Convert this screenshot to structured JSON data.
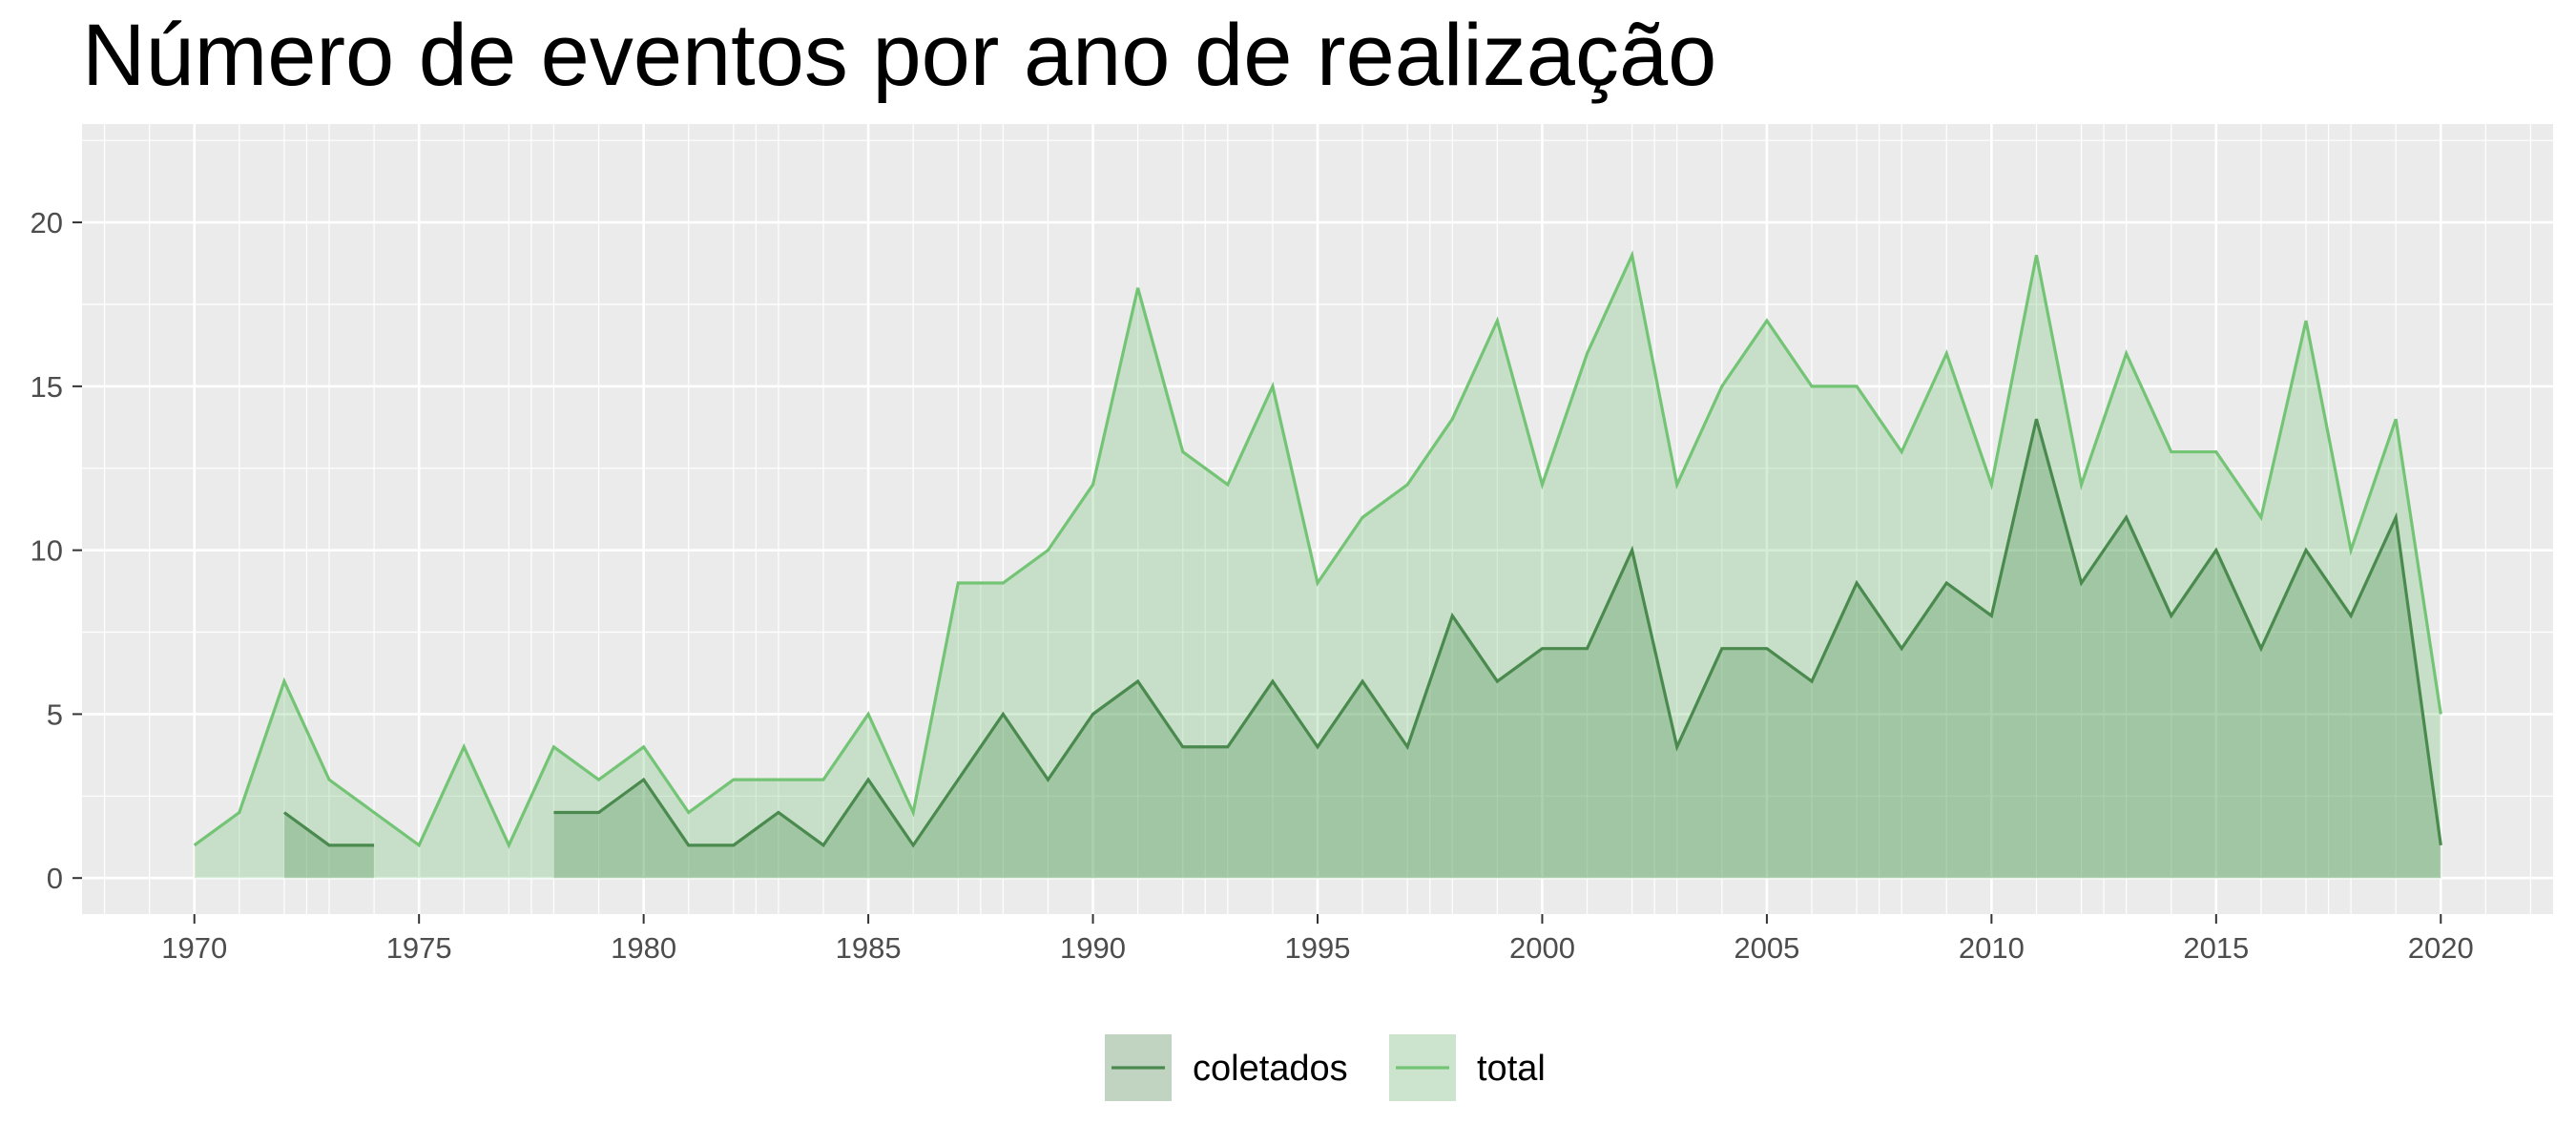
{
  "chart_data": {
    "type": "area",
    "title": "Número de eventos por ano de realização",
    "xlabel": "",
    "ylabel": "",
    "xlim": [
      1967.5,
      2022.5
    ],
    "ylim": [
      -1.1,
      23
    ],
    "x_ticks": [
      1970,
      1975,
      1980,
      1985,
      1990,
      1995,
      2000,
      2005,
      2010,
      2015,
      2020
    ],
    "y_ticks": [
      0,
      5,
      10,
      15,
      20
    ],
    "grid": true,
    "legend_position": "bottom",
    "series": [
      {
        "name": "total",
        "color": "#74c476",
        "fill": "#74c476",
        "fill_opacity": 0.3,
        "x": [
          1970,
          1971,
          1972,
          1973,
          1974,
          1975,
          1976,
          1977,
          1978,
          1979,
          1980,
          1981,
          1982,
          1983,
          1984,
          1985,
          1986,
          1987,
          1988,
          1989,
          1990,
          1991,
          1992,
          1993,
          1994,
          1995,
          1996,
          1997,
          1998,
          1999,
          2000,
          2001,
          2002,
          2003,
          2004,
          2005,
          2006,
          2007,
          2008,
          2009,
          2010,
          2011,
          2012,
          2013,
          2014,
          2015,
          2016,
          2017,
          2018,
          2019,
          2020
        ],
        "values": [
          1,
          2,
          6,
          3,
          2,
          1,
          4,
          1,
          4,
          3,
          4,
          2,
          3,
          3,
          3,
          5,
          2,
          9,
          9,
          10,
          12,
          18,
          13,
          12,
          15,
          9,
          11,
          12,
          14,
          17,
          12,
          16,
          19,
          12,
          15,
          17,
          15,
          15,
          13,
          16,
          12,
          19,
          12,
          16,
          13,
          13,
          11,
          17,
          10,
          14,
          5
        ]
      },
      {
        "name": "coletados",
        "color": "#4a8a4e",
        "fill": "#2e7d32",
        "fill_opacity": 0.25,
        "segments": [
          {
            "x": [
              1972,
              1973,
              1974
            ],
            "values": [
              2,
              1,
              1
            ]
          },
          {
            "x": [
              1978,
              1979,
              1980,
              1981,
              1982,
              1983,
              1984,
              1985,
              1986,
              1987,
              1988,
              1989,
              1990,
              1991,
              1992,
              1993,
              1994,
              1995,
              1996,
              1997,
              1998,
              1999,
              2000,
              2001,
              2002,
              2003,
              2004,
              2005,
              2006,
              2007,
              2008,
              2009,
              2010,
              2011,
              2012,
              2013,
              2014,
              2015,
              2016,
              2017,
              2018,
              2019,
              2020
            ],
            "values": [
              2,
              2,
              3,
              1,
              1,
              2,
              1,
              3,
              1,
              3,
              5,
              3,
              5,
              6,
              4,
              4,
              6,
              4,
              6,
              4,
              8,
              6,
              7,
              7,
              10,
              4,
              7,
              7,
              6,
              9,
              7,
              9,
              8,
              14,
              9,
              11,
              8,
              10,
              7,
              10,
              8,
              11,
              1
            ]
          }
        ]
      }
    ]
  },
  "legend": {
    "items": [
      {
        "label": "coletados",
        "color": "#4a8a4e",
        "fill": "#2e7d32",
        "fill_opacity": 0.25
      },
      {
        "label": "total",
        "color": "#74c476",
        "fill": "#74c476",
        "fill_opacity": 0.3
      }
    ]
  },
  "colors": {
    "panel_background": "#ebebeb",
    "grid": "#ffffff",
    "tick_text": "#4d4d4d",
    "tick_mark": "#333333"
  }
}
